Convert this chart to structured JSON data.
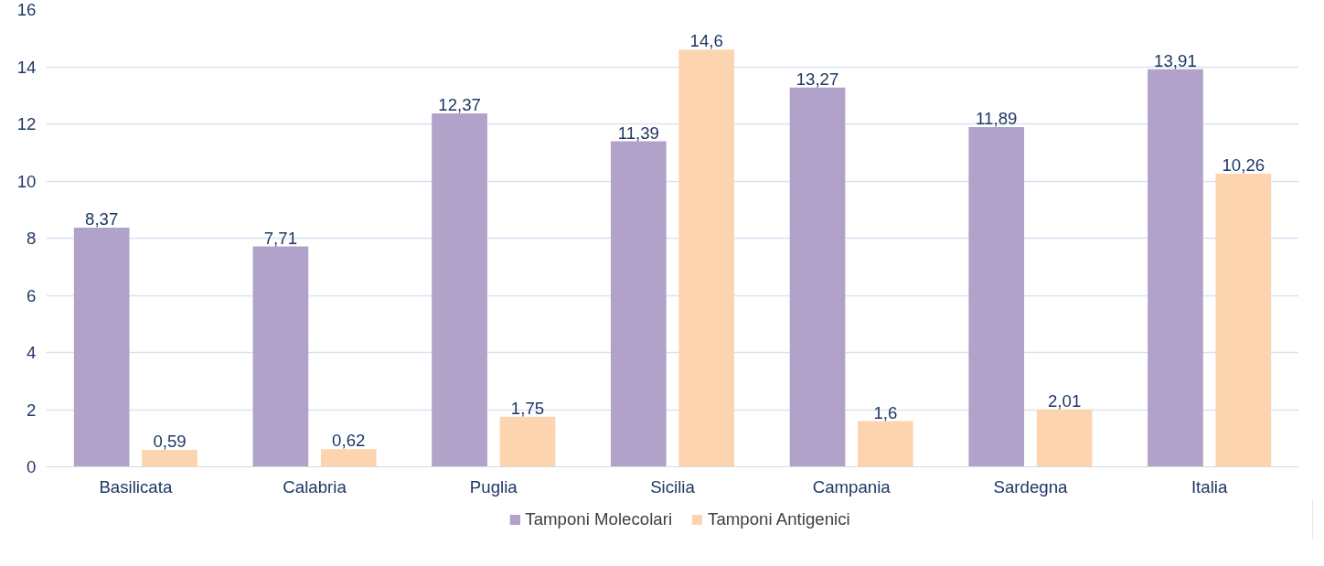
{
  "chart_data": {
    "type": "bar",
    "categories": [
      "Basilicata",
      "Calabria",
      "Puglia",
      "Sicilia",
      "Campania",
      "Sardegna",
      "Italia"
    ],
    "series": [
      {
        "name": "Tamponi Molecolari",
        "color": "#b0a2c8",
        "values": [
          8.37,
          7.71,
          12.37,
          11.39,
          13.27,
          11.89,
          13.91
        ],
        "value_labels": [
          "8,37",
          "7,71",
          "12,37",
          "11,39",
          "13,27",
          "11,89",
          "13,91"
        ]
      },
      {
        "name": "Tamponi Antigenici",
        "color": "#fcd5b0",
        "values": [
          0.59,
          0.62,
          1.75,
          14.6,
          1.6,
          2.01,
          10.26
        ],
        "value_labels": [
          "0,59",
          "0,62",
          "1,75",
          "14,6",
          "1,6",
          "2,01",
          "10,26"
        ]
      }
    ],
    "ylim": [
      0,
      16
    ],
    "yticks": [
      0,
      2,
      4,
      6,
      8,
      10,
      12,
      14,
      16
    ],
    "grid": "y",
    "legend": "bottom"
  }
}
